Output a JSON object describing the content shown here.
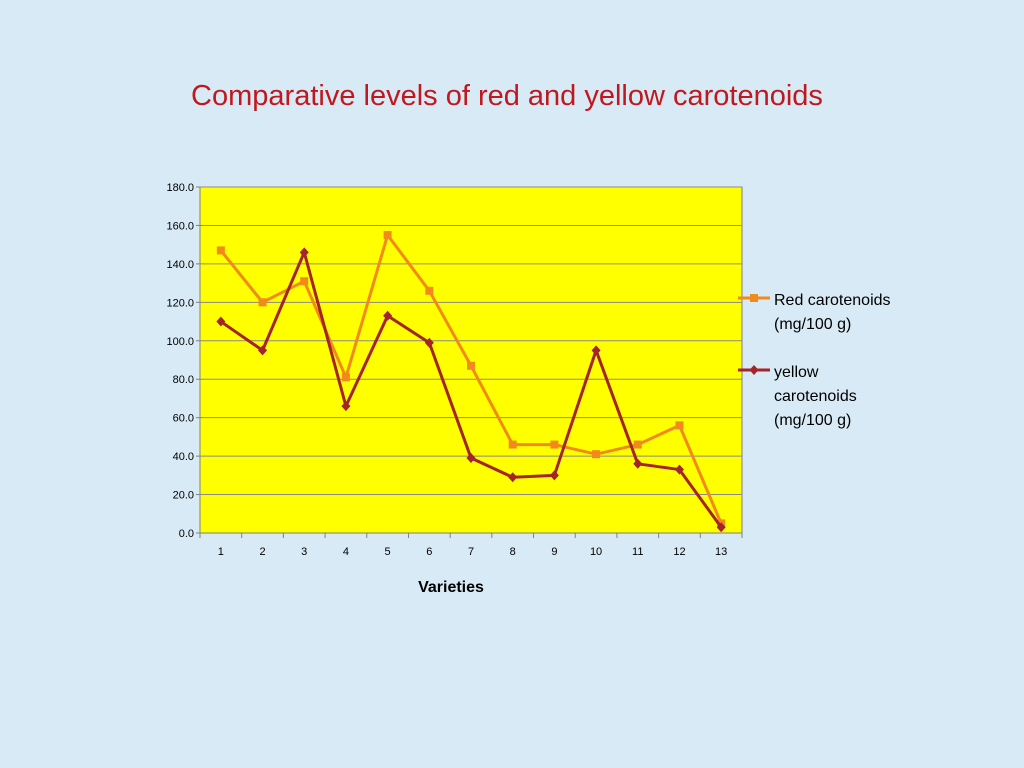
{
  "slide": {
    "title": "Comparative levels of red and yellow carotenoids",
    "background": "#d8eaf5",
    "title_color": "#c0181e"
  },
  "chart_data": {
    "type": "line",
    "title": "",
    "xlabel": "Varieties",
    "ylabel": "",
    "categories": [
      "1",
      "2",
      "3",
      "4",
      "5",
      "6",
      "7",
      "8",
      "9",
      "10",
      "11",
      "12",
      "13"
    ],
    "ylim": [
      0,
      180
    ],
    "yticks": [
      "0.0",
      "20.0",
      "40.0",
      "60.0",
      "80.0",
      "100.0",
      "120.0",
      "140.0",
      "160.0",
      "180.0"
    ],
    "grid": true,
    "plot_background": "#ffff00",
    "legend_position": "right",
    "series": [
      {
        "name": "Red carotenoids (mg/100 g)",
        "legend_lines": [
          "Red carotenoids",
          "(mg/100 g)"
        ],
        "color": "#f28a1b",
        "marker": "square",
        "values": [
          147,
          120,
          131,
          81,
          155,
          126,
          87,
          46,
          46,
          41,
          46,
          56,
          5
        ]
      },
      {
        "name": "yellow carotenoids (mg/100 g)",
        "legend_lines": [
          "yellow",
          "carotenoids",
          "(mg/100 g)"
        ],
        "color": "#a3242a",
        "marker": "diamond",
        "values": [
          110,
          95,
          146,
          66,
          113,
          99,
          39,
          29,
          30,
          95,
          36,
          33,
          3
        ]
      }
    ]
  }
}
